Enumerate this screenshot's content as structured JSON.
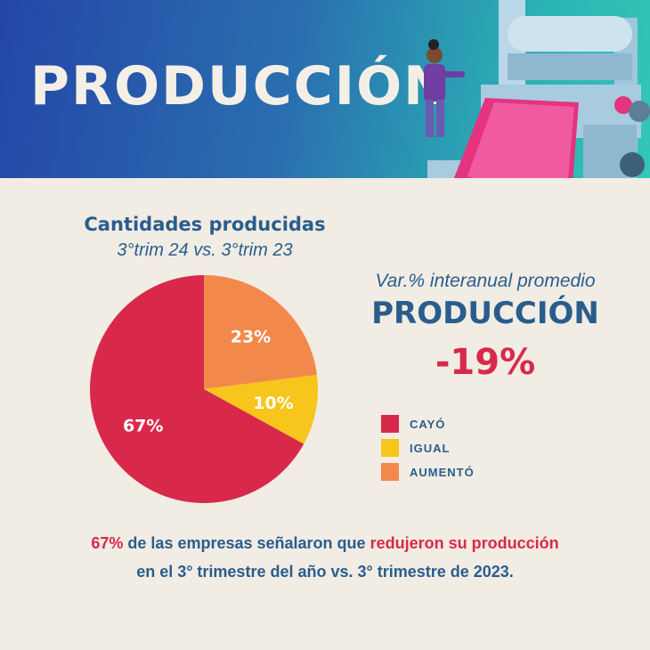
{
  "header": {
    "title": "PRODUCCIÓN"
  },
  "chart_data": {
    "type": "pie",
    "title": "Cantidades producidas",
    "subtitle": "3°trim 24 vs. 3°trim 23",
    "categories": [
      "AUMENTÓ",
      "IGUAL",
      "CAYÓ"
    ],
    "values": [
      23,
      10,
      67
    ],
    "labels": [
      "23%",
      "10%",
      "67%"
    ],
    "colors": [
      "#f2894a",
      "#f7c51b",
      "#d8294b"
    ],
    "legend_position": "right"
  },
  "summary": {
    "var_label": "Var.% interanual promedio",
    "metric_label": "PRODUCCIÓN",
    "value": "-19%"
  },
  "legend": [
    {
      "label": "CAYÓ",
      "color": "#d8294b"
    },
    {
      "label": "IGUAL",
      "color": "#f7c51b"
    },
    {
      "label": "AUMENTÓ",
      "color": "#f2894a"
    }
  ],
  "footer": {
    "part1": "67%",
    "part2": " de las empresas señalaron que ",
    "part3": "redujeron su producción",
    "line2": "en el 3° trimestre del año vs. 3° trimestre de 2023."
  }
}
